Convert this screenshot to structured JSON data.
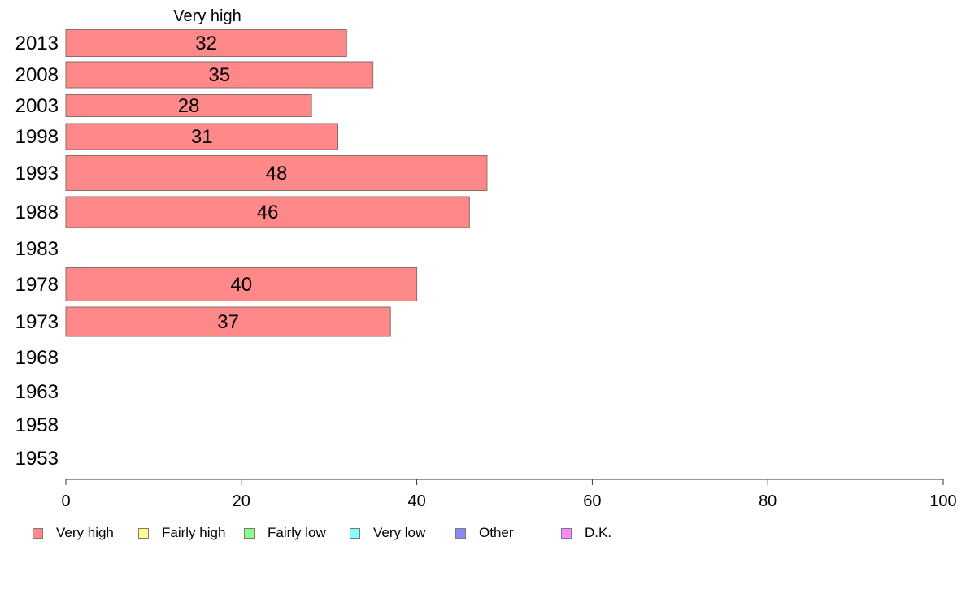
{
  "chart_data": {
    "type": "bar",
    "orientation": "horizontal",
    "column_header": "Very high",
    "categories": [
      "2013",
      "2008",
      "2003",
      "1998",
      "1993",
      "1988",
      "1983",
      "1978",
      "1973",
      "1968",
      "1963",
      "1958",
      "1953"
    ],
    "series": [
      {
        "name": "Very high",
        "color": "#ff8888",
        "values": [
          32,
          35,
          28,
          31,
          48,
          46,
          null,
          40,
          37,
          null,
          null,
          null,
          null
        ]
      }
    ],
    "xlim": [
      0,
      100
    ],
    "xticks": [
      "0",
      "20",
      "40",
      "60",
      "80",
      "100"
    ],
    "grid": false,
    "legend_position": "bottom"
  },
  "legend": [
    {
      "label": "Very high",
      "color": "#ff8888"
    },
    {
      "label": "Fairly high",
      "color": "#ffff88"
    },
    {
      "label": "Fairly low",
      "color": "#88ff88"
    },
    {
      "label": "Very low",
      "color": "#88ffff"
    },
    {
      "label": "Other",
      "color": "#8888ff"
    },
    {
      "label": "D.K.",
      "color": "#ff88ff"
    }
  ]
}
